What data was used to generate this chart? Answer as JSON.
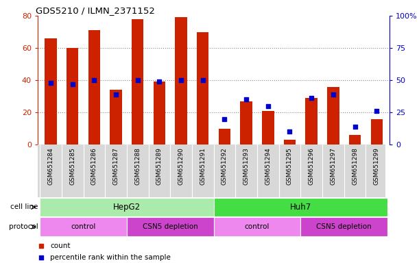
{
  "title": "GDS5210 / ILMN_2371152",
  "samples": [
    "GSM651284",
    "GSM651285",
    "GSM651286",
    "GSM651287",
    "GSM651288",
    "GSM651289",
    "GSM651290",
    "GSM651291",
    "GSM651292",
    "GSM651293",
    "GSM651294",
    "GSM651295",
    "GSM651296",
    "GSM651297",
    "GSM651298",
    "GSM651299"
  ],
  "counts": [
    66,
    60,
    71,
    34,
    78,
    39,
    79,
    70,
    10,
    27,
    21,
    3,
    29,
    36,
    6,
    16
  ],
  "percentiles": [
    48,
    47,
    50,
    39,
    50,
    49,
    50,
    50,
    20,
    35,
    30,
    10,
    36,
    39,
    14,
    26
  ],
  "bar_color": "#cc2200",
  "dot_color": "#0000cc",
  "ylim_left": [
    0,
    80
  ],
  "ylim_right": [
    0,
    100
  ],
  "yticks_left": [
    0,
    20,
    40,
    60,
    80
  ],
  "ytick_labels_right": [
    "0",
    "25",
    "50",
    "75",
    "100%"
  ],
  "cell_line_groups": [
    {
      "label": "HepG2",
      "start": 0,
      "end": 8,
      "color": "#aaeaaa"
    },
    {
      "label": "Huh7",
      "start": 8,
      "end": 16,
      "color": "#44dd44"
    }
  ],
  "protocol_groups": [
    {
      "label": "control",
      "start": 0,
      "end": 4,
      "color": "#ee88ee"
    },
    {
      "label": "CSN5 depletion",
      "start": 4,
      "end": 8,
      "color": "#cc44cc"
    },
    {
      "label": "control",
      "start": 8,
      "end": 12,
      "color": "#ee88ee"
    },
    {
      "label": "CSN5 depletion",
      "start": 12,
      "end": 16,
      "color": "#cc44cc"
    }
  ],
  "legend_items": [
    {
      "label": "count",
      "color": "#cc2200"
    },
    {
      "label": "percentile rank within the sample",
      "color": "#0000cc"
    }
  ],
  "cell_line_label": "cell line",
  "protocol_label": "protocol",
  "plot_bg_color": "#ffffff",
  "fig_bg_color": "#ffffff",
  "grid_color": "#888888",
  "xticklabel_bg": "#d8d8d8"
}
